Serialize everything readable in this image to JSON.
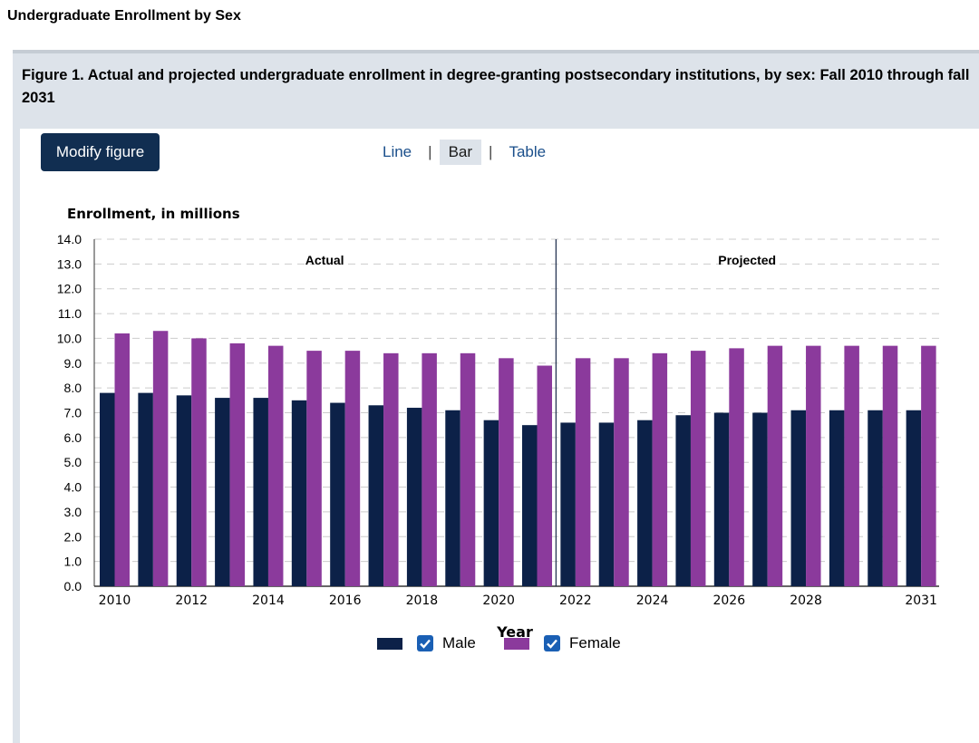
{
  "page": {
    "heading": "Undergraduate Enrollment by Sex"
  },
  "figure": {
    "caption": "Figure 1. Actual and projected undergraduate enrollment in degree-granting postsecondary institutions, by sex: Fall 2010 through fall 2031",
    "modify_label": "Modify figure",
    "tabs": [
      {
        "label": "Line",
        "active": false
      },
      {
        "label": "Bar",
        "active": true
      },
      {
        "label": "Table",
        "active": false
      }
    ],
    "separator": "|"
  },
  "chart_data": {
    "type": "bar",
    "title": "",
    "ylabel": "Enrollment, in millions",
    "xlabel": "Year",
    "ylim": [
      0,
      14
    ],
    "yticks": [
      "0.0",
      "1.0",
      "2.0",
      "3.0",
      "4.0",
      "5.0",
      "6.0",
      "7.0",
      "8.0",
      "9.0",
      "10.0",
      "11.0",
      "12.0",
      "13.0",
      "14.0"
    ],
    "grid": true,
    "legend_position": "bottom",
    "categories": [
      "2010",
      "2011",
      "2012",
      "2013",
      "2014",
      "2015",
      "2016",
      "2017",
      "2018",
      "2019",
      "2020",
      "2021",
      "2022",
      "2023",
      "2024",
      "2025",
      "2026",
      "2027",
      "2028",
      "2029",
      "2030",
      "2031"
    ],
    "x_tick_labels": [
      "2010",
      "",
      "2012",
      "",
      "2014",
      "",
      "2016",
      "",
      "2018",
      "",
      "2020",
      "",
      "2022",
      "",
      "2024",
      "",
      "2026",
      "",
      "2028",
      "",
      "",
      "2031"
    ],
    "regions": [
      {
        "label": "Actual",
        "from": "2010",
        "to": "2021"
      },
      {
        "label": "Projected",
        "from": "2022",
        "to": "2031"
      }
    ],
    "series": [
      {
        "name": "Male",
        "color": "#0c2148",
        "values": [
          7.8,
          7.8,
          7.7,
          7.6,
          7.6,
          7.5,
          7.4,
          7.3,
          7.2,
          7.1,
          6.7,
          6.5,
          6.6,
          6.6,
          6.7,
          6.9,
          7.0,
          7.0,
          7.1,
          7.1,
          7.1,
          7.1
        ]
      },
      {
        "name": "Female",
        "color": "#8b3a9c",
        "values": [
          10.2,
          10.3,
          10.0,
          9.8,
          9.7,
          9.5,
          9.5,
          9.4,
          9.4,
          9.4,
          9.2,
          8.9,
          9.2,
          9.2,
          9.4,
          9.5,
          9.6,
          9.7,
          9.7,
          9.7,
          9.7,
          9.7
        ]
      }
    ]
  }
}
